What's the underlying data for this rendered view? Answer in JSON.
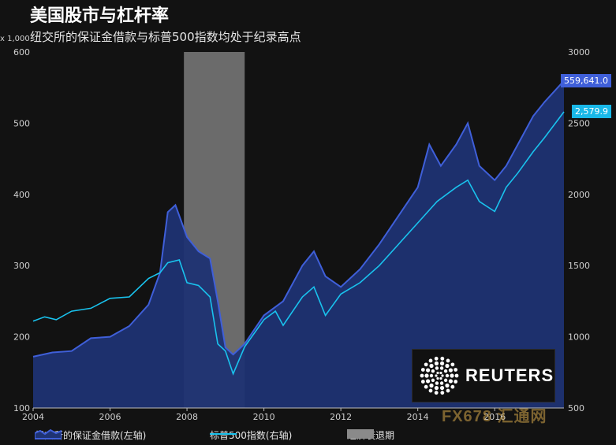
{
  "header": {
    "title": "美国股市与杠杆率",
    "subtitle": "纽交所的保证金借款与标普500指数均处于纪录高点",
    "unit": "x 1,000"
  },
  "badges": {
    "margin_last": "559,641.0",
    "spx_last": "2,579.9"
  },
  "logo": {
    "text": "REUTERS"
  },
  "watermark": {
    "text": "FX678 汇通网"
  },
  "legend": {
    "margin_label": "纽交所的保证金借款(左轴)",
    "spx_label": "标普500指数(右轴)",
    "recession_label": "经济衰退期"
  },
  "colors": {
    "margin_fill": "#1f3373",
    "margin_line": "#3f5fd9",
    "spx_line": "#19c3ee",
    "recession": "#8a8a8a",
    "badge_margin": "#3f5fd9",
    "badge_spx": "#19b8e8"
  },
  "chart_data": {
    "type": "area",
    "xlim": [
      2004.0,
      2017.8
    ],
    "x_ticks": [
      "2004",
      "2006",
      "2008",
      "2010",
      "2012",
      "2014",
      "2016"
    ],
    "y_left": {
      "ylim": [
        100,
        600
      ],
      "ticks": [
        "100",
        "200",
        "300",
        "400",
        "500",
        "600"
      ]
    },
    "y_right": {
      "ylim": [
        500,
        3000
      ],
      "ticks": [
        "500",
        "1000",
        "1500",
        "2000",
        "2500",
        "3000"
      ]
    },
    "recession": [
      2007.92,
      2009.5
    ],
    "series": [
      {
        "name": "纽交所的保证金借款(左轴)",
        "axis": "left",
        "kind": "area",
        "x": [
          2004.0,
          2004.5,
          2005.0,
          2005.5,
          2006.0,
          2006.5,
          2007.0,
          2007.3,
          2007.5,
          2007.7,
          2008.0,
          2008.3,
          2008.6,
          2008.8,
          2009.0,
          2009.2,
          2009.5,
          2010.0,
          2010.5,
          2011.0,
          2011.3,
          2011.6,
          2012.0,
          2012.5,
          2013.0,
          2013.5,
          2014.0,
          2014.3,
          2014.6,
          2015.0,
          2015.3,
          2015.6,
          2016.0,
          2016.3,
          2016.6,
          2017.0,
          2017.3,
          2017.8
        ],
        "values": [
          172,
          178,
          180,
          198,
          200,
          215,
          245,
          290,
          375,
          385,
          340,
          320,
          310,
          250,
          185,
          175,
          190,
          230,
          250,
          300,
          320,
          285,
          270,
          295,
          330,
          370,
          410,
          470,
          440,
          470,
          500,
          440,
          420,
          440,
          470,
          510,
          530,
          559.6
        ]
      },
      {
        "name": "标普500指数(右轴)",
        "axis": "right",
        "kind": "line",
        "x": [
          2004.0,
          2004.3,
          2004.6,
          2005.0,
          2005.5,
          2006.0,
          2006.5,
          2007.0,
          2007.3,
          2007.5,
          2007.8,
          2008.0,
          2008.3,
          2008.6,
          2008.8,
          2009.0,
          2009.2,
          2009.5,
          2010.0,
          2010.3,
          2010.5,
          2011.0,
          2011.3,
          2011.6,
          2012.0,
          2012.5,
          2013.0,
          2013.5,
          2014.0,
          2014.5,
          2015.0,
          2015.3,
          2015.6,
          2016.0,
          2016.3,
          2016.6,
          2017.0,
          2017.3,
          2017.8
        ],
        "values": [
          1110,
          1140,
          1120,
          1180,
          1200,
          1270,
          1280,
          1410,
          1450,
          1520,
          1540,
          1380,
          1360,
          1280,
          950,
          900,
          740,
          930,
          1120,
          1180,
          1080,
          1280,
          1350,
          1150,
          1300,
          1380,
          1500,
          1650,
          1800,
          1950,
          2050,
          2100,
          1950,
          1880,
          2050,
          2150,
          2300,
          2400,
          2579.9
        ]
      }
    ]
  }
}
